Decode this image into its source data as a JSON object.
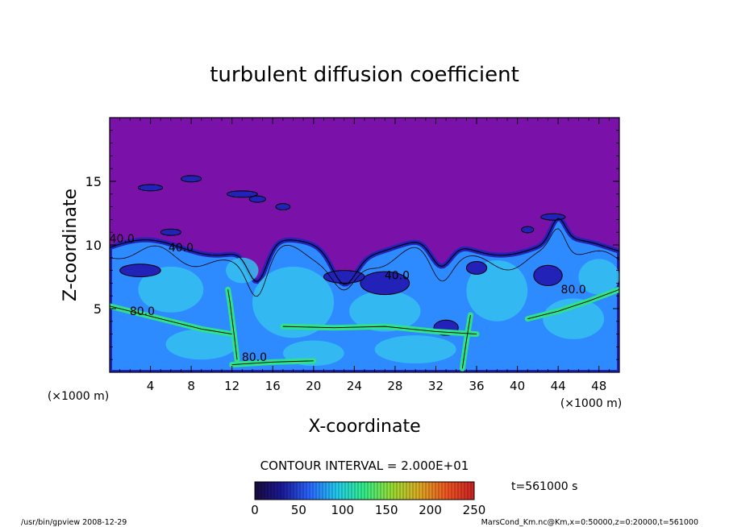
{
  "chart_data": {
    "type": "heatmap",
    "title": "turbulent diffusion coefficient",
    "xlabel": "X-coordinate",
    "ylabel": "Z-coordinate",
    "x_unit_left": "(×1000 m)",
    "x_unit_right": "(×1000 m)",
    "xlim": [
      0,
      50
    ],
    "ylim": [
      0,
      20
    ],
    "x_ticks": [
      4,
      8,
      12,
      16,
      20,
      24,
      28,
      32,
      36,
      40,
      44,
      48
    ],
    "y_ticks": [
      5,
      10,
      15
    ],
    "contour_interval_text": "CONTOUR INTERVAL = 2.000E+01",
    "contour_labels": [
      {
        "text": "40.0",
        "x": 1.2,
        "z": 10.2
      },
      {
        "text": "40.0",
        "x": 7.0,
        "z": 9.5
      },
      {
        "text": "40.0",
        "x": 28.2,
        "z": 7.3
      },
      {
        "text": "80.0",
        "x": 3.2,
        "z": 4.5
      },
      {
        "text": "80.0",
        "x": 14.2,
        "z": 0.9
      },
      {
        "text": "80.0",
        "x": 45.5,
        "z": 6.2
      }
    ],
    "colorbar": {
      "min": 0,
      "max": 250,
      "ticks": [
        0,
        50,
        100,
        150,
        200,
        250
      ],
      "colors": [
        "#1a0a3c",
        "#1a1a9a",
        "#2a66ff",
        "#22ccee",
        "#33ee88",
        "#99dd33",
        "#ddaa22",
        "#ee5522",
        "#cc2222"
      ]
    },
    "field_colors": {
      "background": "#7a11a8",
      "boundary": "#2222b8",
      "mixed_layer": "#2d8aff",
      "core": "#35bff0",
      "high": "#2fe08c"
    },
    "time_label": "t=561000  s"
  },
  "footer": {
    "left": "/usr/bin/gpview   2008-12-29",
    "right": "MarsCond_Km.nc@Km,x=0:50000,z=0:20000,t=561000"
  }
}
